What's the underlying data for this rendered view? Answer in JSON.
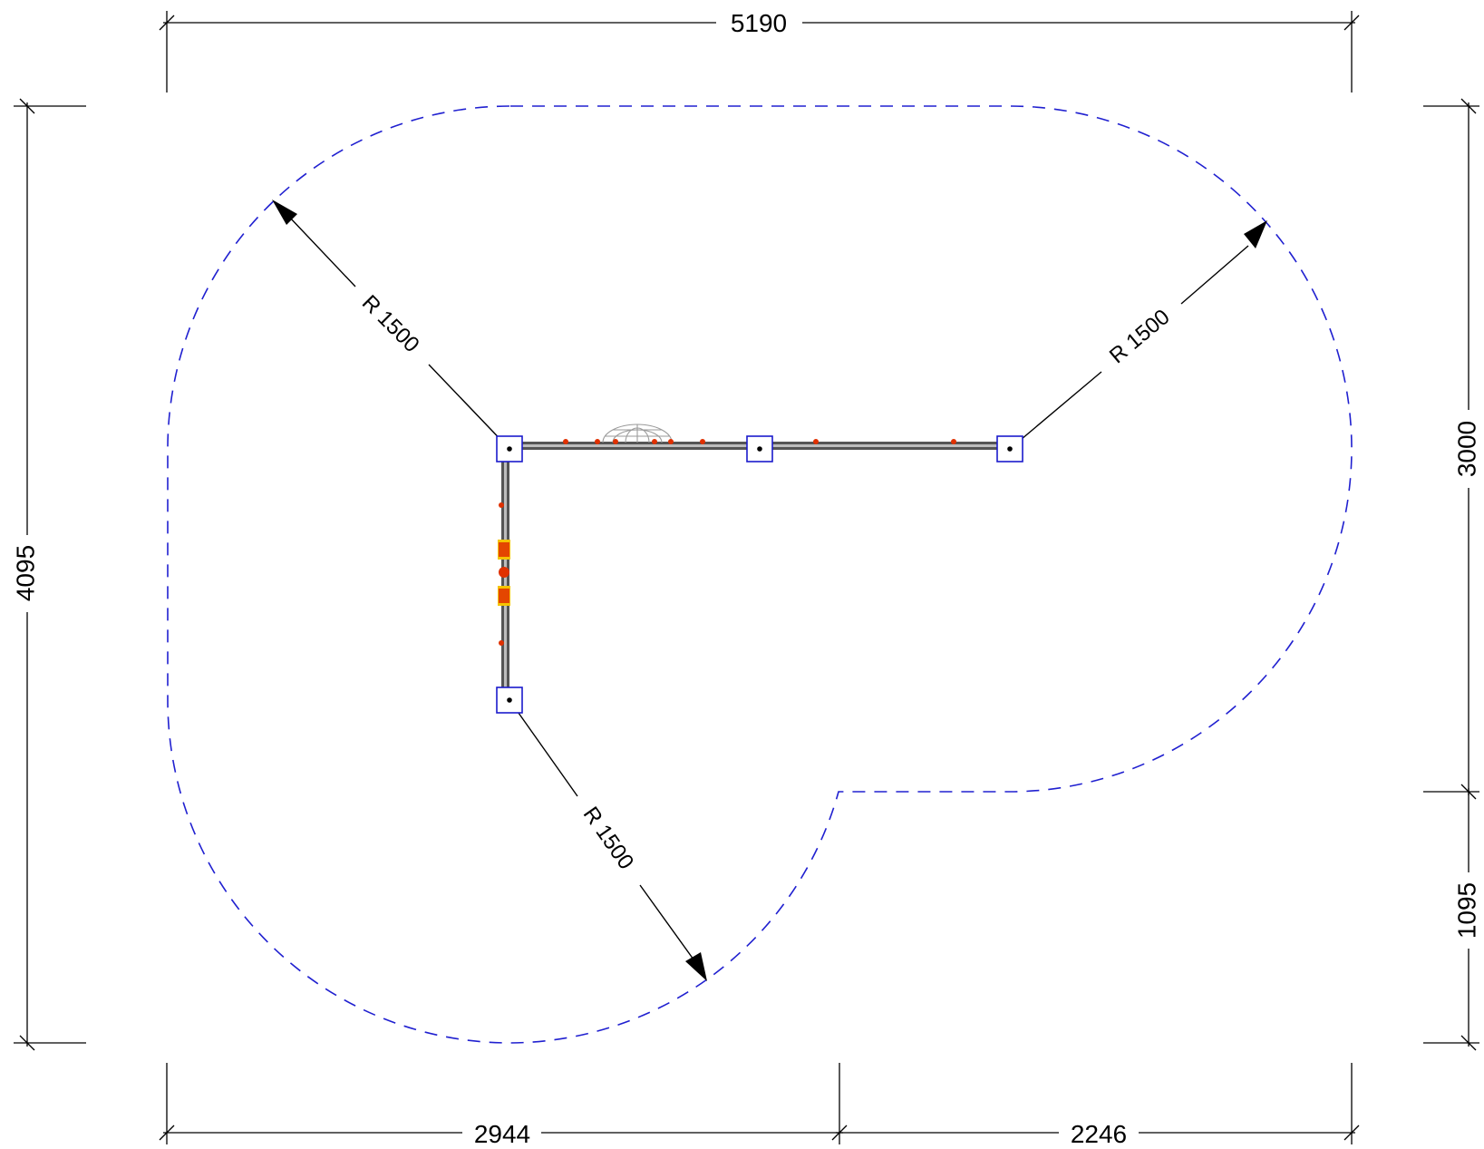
{
  "dimensions": {
    "overall_width": "5190",
    "overall_height": "4095",
    "right_upper": "3000",
    "right_lower": "1095",
    "bottom_left": "2944",
    "bottom_right": "2246"
  },
  "radii": {
    "top_left": "R 1500",
    "top_right": "R 1500",
    "bottom": "R 1500"
  },
  "colors": {
    "boundary": "#2020d0",
    "post_outline": "#1a1acc",
    "fixture_red": "#e03000",
    "fixture_yellow": "#f5c400",
    "dimension": "#000000"
  },
  "icons": {
    "post": "square-post-icon",
    "dome": "dome-icon",
    "fixture": "fixture-dot-icon"
  }
}
